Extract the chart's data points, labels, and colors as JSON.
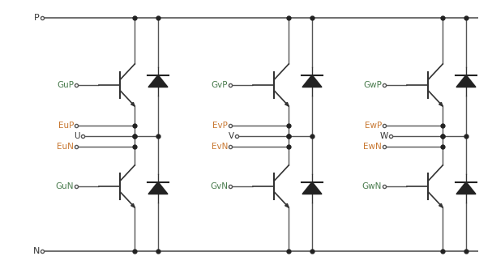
{
  "bg_color": "#ffffff",
  "line_color": "#555555",
  "label_green": "#4a7c4e",
  "label_orange": "#c87832",
  "label_black": "#333333",
  "fig_width": 6.07,
  "fig_height": 3.32,
  "dpi": 100,
  "phases": [
    {
      "gp": "GuP",
      "gn": "GuN",
      "ep": "EuP",
      "en": "EuN",
      "out": "U"
    },
    {
      "gp": "GvP",
      "gn": "GvN",
      "ep": "EvP",
      "en": "EvN",
      "out": "V"
    },
    {
      "gp": "GwP",
      "gn": "GwN",
      "ep": "EwP",
      "en": "EwN",
      "out": "W"
    }
  ]
}
